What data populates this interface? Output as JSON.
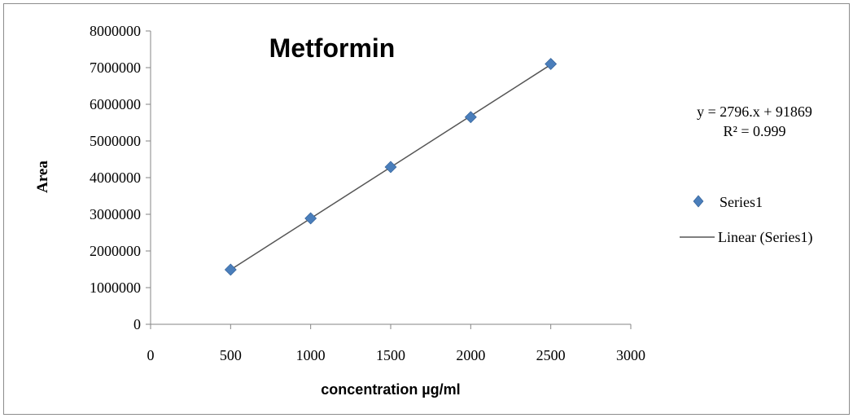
{
  "chart_data": {
    "type": "scatter",
    "title": "Metformin",
    "xlabel": "concentration µg/ml",
    "ylabel": "Area",
    "xlim": [
      0,
      3000
    ],
    "ylim": [
      0,
      8000000
    ],
    "x_ticks": [
      0,
      500,
      1000,
      1500,
      2000,
      2500,
      3000
    ],
    "y_ticks": [
      0,
      1000000,
      2000000,
      3000000,
      4000000,
      5000000,
      6000000,
      7000000,
      8000000
    ],
    "grid": false,
    "legend_position": "right",
    "series": [
      {
        "name": "Series1",
        "marker": "diamond",
        "color": "#4a7ebb",
        "x": [
          500,
          1000,
          1500,
          2000,
          2500
        ],
        "y": [
          1490000,
          2890000,
          4290000,
          5650000,
          7100000
        ]
      }
    ],
    "trendline": {
      "name": "Linear (Series1)",
      "color": "#555555",
      "slope": 2796,
      "intercept": 91869,
      "equation": "y = 2796.x + 91869",
      "r_squared": "R² = 0.999"
    }
  }
}
